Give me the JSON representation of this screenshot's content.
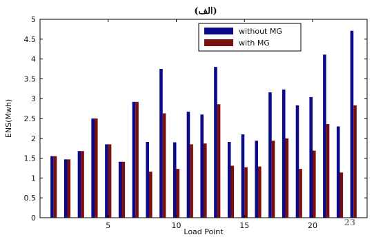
{
  "chart_data": {
    "type": "bar",
    "title": "(الف)",
    "xlabel": "Load Point",
    "ylabel": "ENS(Mwh)",
    "xlim": [
      0,
      24
    ],
    "ylim": [
      0,
      5
    ],
    "x_ticks": [
      5,
      10,
      15,
      20
    ],
    "y_ticks": [
      0,
      0.5,
      1,
      1.5,
      2,
      2.5,
      3,
      3.5,
      4,
      4.5,
      5
    ],
    "grid": false,
    "legend_position": "top-right",
    "categories": [
      1,
      2,
      3,
      4,
      5,
      6,
      7,
      8,
      9,
      10,
      11,
      12,
      13,
      14,
      15,
      16,
      17,
      18,
      19,
      20,
      21,
      22,
      23
    ],
    "series": [
      {
        "name": "without MG",
        "color": "#0b0b8a",
        "values": [
          1.55,
          1.47,
          1.68,
          2.5,
          1.85,
          1.41,
          2.92,
          1.91,
          3.75,
          1.9,
          2.67,
          2.6,
          3.8,
          1.91,
          2.1,
          1.94,
          3.16,
          3.23,
          2.83,
          3.04,
          4.11,
          2.3,
          4.71
        ]
      },
      {
        "name": "with MG",
        "color": "#7a0f0f",
        "values": [
          1.55,
          1.47,
          1.68,
          2.5,
          1.85,
          1.41,
          2.92,
          1.16,
          2.63,
          1.23,
          1.85,
          1.87,
          2.86,
          1.31,
          1.27,
          1.29,
          1.94,
          2.0,
          1.23,
          1.69,
          2.36,
          1.14,
          2.83
        ]
      }
    ],
    "corner_label": "23"
  }
}
